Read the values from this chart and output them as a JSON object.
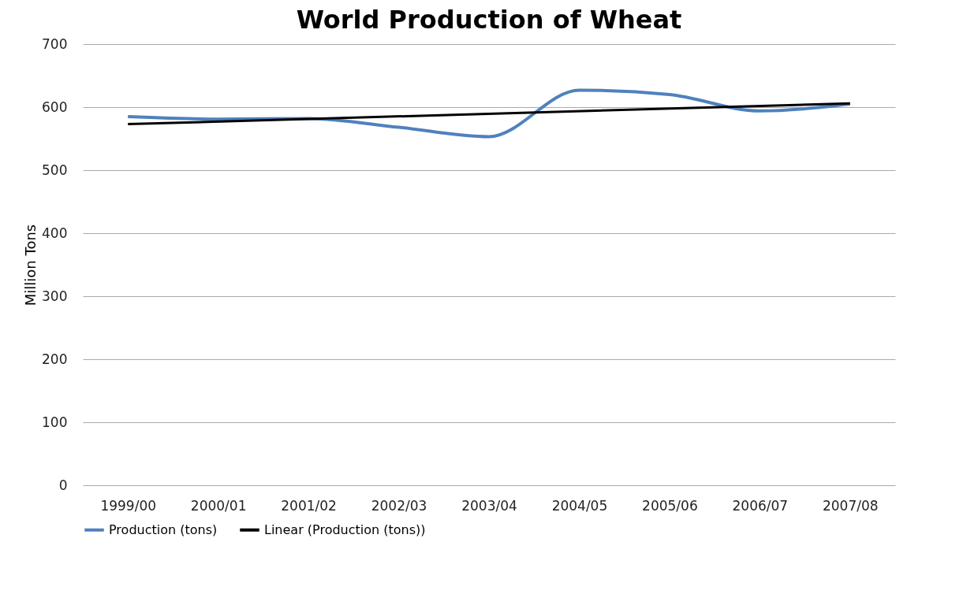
{
  "chart_data": {
    "type": "line",
    "title": "World Production of Wheat",
    "ylabel": "Million Tons",
    "categories": [
      "1999/00",
      "2000/01",
      "2001/02",
      "2002/03",
      "2003/04",
      "2004/05",
      "2005/06",
      "2006/07",
      "2007/08"
    ],
    "series": [
      {
        "name": "Production (tons)",
        "color": "#4f81bd",
        "values": [
          585,
          581,
          582,
          568,
          553,
          627,
          620,
          594,
          605
        ]
      },
      {
        "name": "Linear (Production (tons))",
        "color": "#000000",
        "type": "line",
        "x": [
          "1999/00",
          "2007/08"
        ],
        "values": [
          573,
          606
        ]
      }
    ],
    "ylim": [
      0,
      700
    ],
    "yticks": [
      0,
      100,
      200,
      300,
      400,
      500,
      600,
      700
    ],
    "grid": "y",
    "legend": "bottom",
    "marker": "none",
    "line_style": "solid"
  }
}
